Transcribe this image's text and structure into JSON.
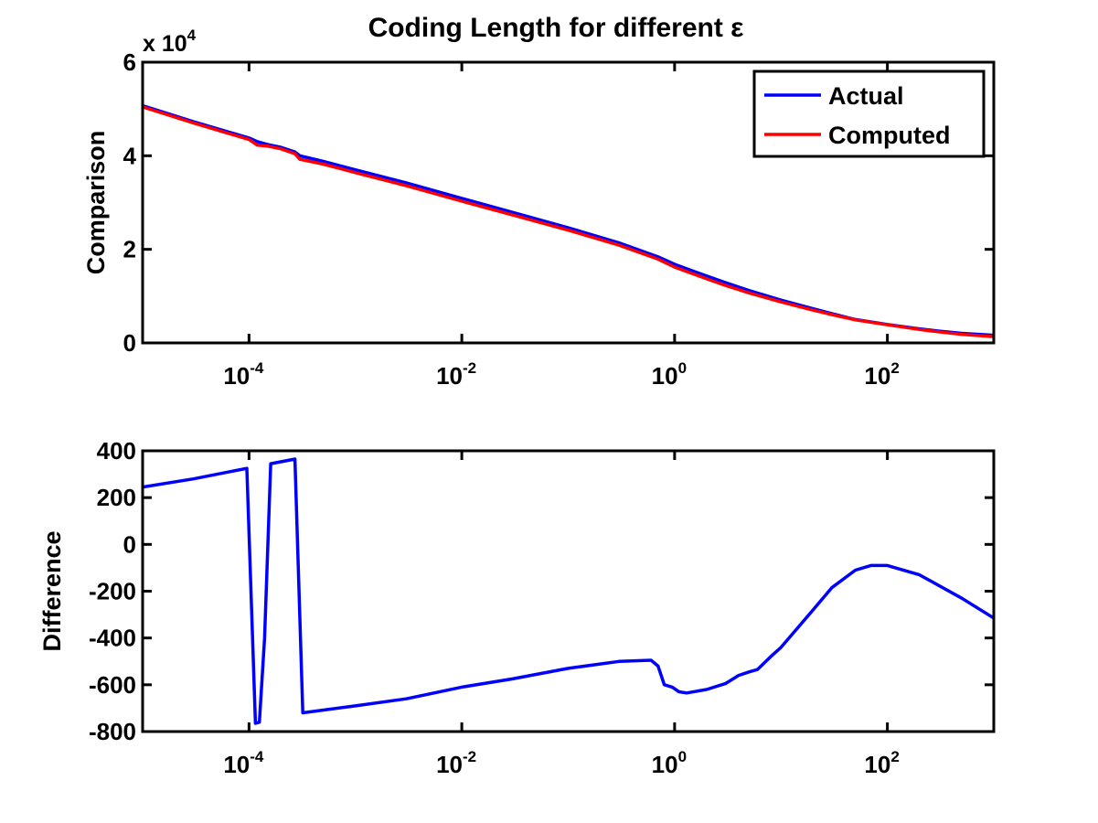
{
  "chart_data": [
    {
      "type": "line",
      "title": "Coding Length for different ε",
      "xlabel": "",
      "ylabel": "Comparison",
      "x_scale": "log",
      "xlim": [
        1e-05,
        1000
      ],
      "ylim": [
        0,
        60000
      ],
      "x_tick_labels": [
        {
          "base": "10",
          "exp": "-4"
        },
        {
          "base": "10",
          "exp": "-2"
        },
        {
          "base": "10",
          "exp": "0"
        },
        {
          "base": "10",
          "exp": "2"
        }
      ],
      "y_tick_labels": [
        "0",
        "2",
        "4",
        "6"
      ],
      "y_multiplier": {
        "base": "x 10",
        "exp": "4"
      },
      "legend": {
        "location": "top-right",
        "entries": [
          "Actual",
          "Computed"
        ]
      },
      "x": [
        1e-05,
        3e-05,
        0.0001,
        0.00012,
        0.00015,
        0.0002,
        0.00027,
        0.0003,
        0.0005,
        0.001,
        0.003,
        0.01,
        0.03,
        0.1,
        0.3,
        0.7,
        1,
        2,
        3,
        5,
        10,
        20,
        30,
        50,
        100,
        200,
        300,
        500,
        1000
      ],
      "series": [
        {
          "name": "Actual",
          "color": "#0000ff",
          "values": [
            50700,
            47300,
            43800,
            43000,
            42400,
            41800,
            40800,
            40000,
            38800,
            37000,
            34200,
            30900,
            27900,
            24600,
            21400,
            18400,
            16800,
            14300,
            12900,
            11200,
            9150,
            7300,
            6250,
            5000,
            3950,
            3000,
            2550,
            2050,
            1650
          ]
        },
        {
          "name": "Computed",
          "color": "#ff0000",
          "values": [
            50450,
            47020,
            43470,
            42250,
            42050,
            41470,
            40430,
            39270,
            38200,
            36400,
            33600,
            30300,
            27350,
            24100,
            20900,
            17900,
            16200,
            13700,
            12300,
            10700,
            8750,
            7000,
            6050,
            4920,
            3870,
            2880,
            2380,
            1830,
            1350
          ]
        }
      ]
    },
    {
      "type": "line",
      "title": "",
      "xlabel": "",
      "ylabel": "Difference",
      "x_scale": "log",
      "xlim": [
        1e-05,
        1000
      ],
      "ylim": [
        -800,
        400
      ],
      "x_tick_labels": [
        {
          "base": "10",
          "exp": "-4"
        },
        {
          "base": "10",
          "exp": "-2"
        },
        {
          "base": "10",
          "exp": "0"
        },
        {
          "base": "10",
          "exp": "2"
        }
      ],
      "y_tick_labels": [
        "-800",
        "-600",
        "-400",
        "-200",
        "0",
        "200",
        "400"
      ],
      "series": [
        {
          "color": "#0000ff",
          "x": [
            1e-05,
            3e-05,
            9.55e-05,
            0.000115,
            0.000125,
            0.00014,
            0.00016,
            0.00027,
            0.00032,
            0.001,
            0.003,
            0.01,
            0.03,
            0.1,
            0.3,
            0.6,
            0.7,
            0.8,
            0.95,
            1.1,
            1.3,
            2,
            3,
            4,
            5,
            6,
            8,
            10,
            20,
            30,
            50,
            70,
            100,
            200,
            500,
            1000
          ],
          "values": [
            245,
            280,
            325,
            -765,
            -760,
            -400,
            345,
            365,
            -720,
            -690,
            -660,
            -610,
            -575,
            -530,
            -500,
            -495,
            -520,
            -600,
            -610,
            -630,
            -635,
            -620,
            -595,
            -560,
            -545,
            -535,
            -480,
            -440,
            -280,
            -185,
            -110,
            -90,
            -90,
            -130,
            -230,
            -315
          ]
        }
      ]
    }
  ]
}
